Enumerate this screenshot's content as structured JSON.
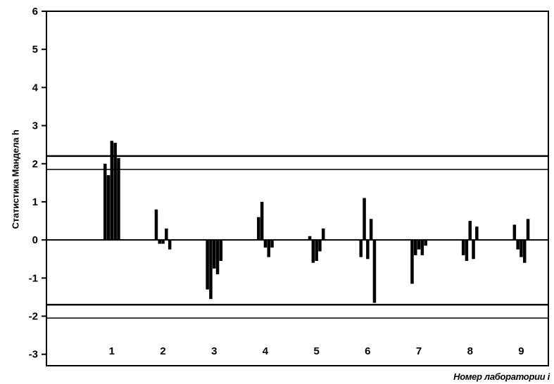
{
  "chart_data": {
    "type": "bar",
    "title": "",
    "xlabel": "Номер лаборатории i",
    "ylabel": "Статистика Мандела h",
    "ylim": [
      -3.3,
      6.0
    ],
    "yticks": [
      "-3",
      "-2",
      "-1",
      "0",
      "1",
      "2",
      "3",
      "4",
      "5",
      "6"
    ],
    "grid": false,
    "categories": [
      "1",
      "2",
      "3",
      "4",
      "5",
      "6",
      "7",
      "8",
      "9"
    ],
    "series": [
      {
        "values": [
          2.0,
          0.8,
          -1.3,
          0.6,
          0.1,
          -0.45,
          -1.15,
          -0.4,
          0.4
        ]
      },
      {
        "values": [
          1.7,
          -0.1,
          -1.55,
          1.0,
          -0.6,
          1.1,
          -0.4,
          -0.55,
          -0.25
        ]
      },
      {
        "values": [
          2.6,
          -0.1,
          -0.75,
          -0.2,
          -0.55,
          -0.5,
          -0.25,
          0.5,
          -0.45
        ]
      },
      {
        "values": [
          2.55,
          0.3,
          -0.9,
          -0.45,
          -0.3,
          0.55,
          -0.4,
          -0.5,
          -0.6
        ]
      },
      {
        "values": [
          2.15,
          -0.25,
          -0.55,
          -0.2,
          0.3,
          -1.65,
          -0.15,
          0.35,
          0.55
        ]
      }
    ],
    "reference_lines": [
      2.2,
      1.85,
      -1.7,
      -2.05
    ]
  }
}
